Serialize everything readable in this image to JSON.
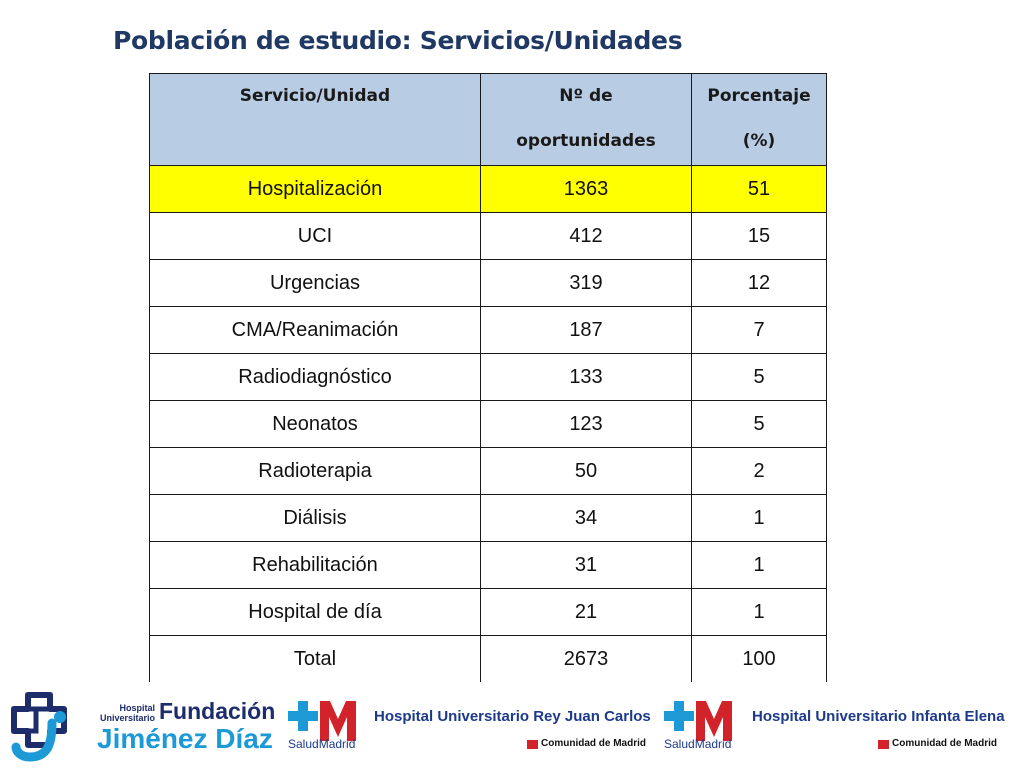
{
  "title": "Población de estudio: Servicios/Unidades",
  "table": {
    "headers": [
      [
        "Servicio/Unidad"
      ],
      [
        "Nº de",
        "oportunidades"
      ],
      [
        "Porcentaje",
        "(%)"
      ]
    ],
    "rows": [
      {
        "servicio": "Hospitalización",
        "n": "1363",
        "pct": "51",
        "highlight": true
      },
      {
        "servicio": "UCI",
        "n": "412",
        "pct": "15"
      },
      {
        "servicio": "Urgencias",
        "n": "319",
        "pct": "12"
      },
      {
        "servicio": "CMA/Reanimación",
        "n": "187",
        "pct": "7"
      },
      {
        "servicio": "Radiodiagnóstico",
        "n": "133",
        "pct": "5"
      },
      {
        "servicio": "Neonatos",
        "n": "123",
        "pct": "5"
      },
      {
        "servicio": "Radioterapia",
        "n": "50",
        "pct": "2"
      },
      {
        "servicio": "Diálisis",
        "n": "34",
        "pct": "1"
      },
      {
        "servicio": "Rehabilitación",
        "n": "31",
        "pct": "1"
      },
      {
        "servicio": "Hospital de día",
        "n": "21",
        "pct": "1"
      },
      {
        "servicio": "Total",
        "n": "2673",
        "pct": "100"
      }
    ]
  },
  "logos": {
    "fjd": {
      "line1": "Hospital",
      "line2": "Universitario",
      "fundacion": "Fundación",
      "name": "Jiménez Díaz"
    },
    "rey_juan_carlos": {
      "salud": "SaludMadrid",
      "hospital": "Hospital Universitario Rey Juan Carlos",
      "comunidad": "Comunidad de Madrid"
    },
    "infanta_elena": {
      "salud": "SaludMadrid",
      "hospital": "Hospital Universitario Infanta Elena",
      "comunidad": "Comunidad de Madrid"
    }
  },
  "colors": {
    "title": "#1f3864",
    "header_bg": "#b8cce4",
    "highlight": "#ffff00",
    "brand_navy": "#1d2d6b",
    "brand_blue": "#1d9ad6",
    "madrid_red": "#d2232a"
  }
}
